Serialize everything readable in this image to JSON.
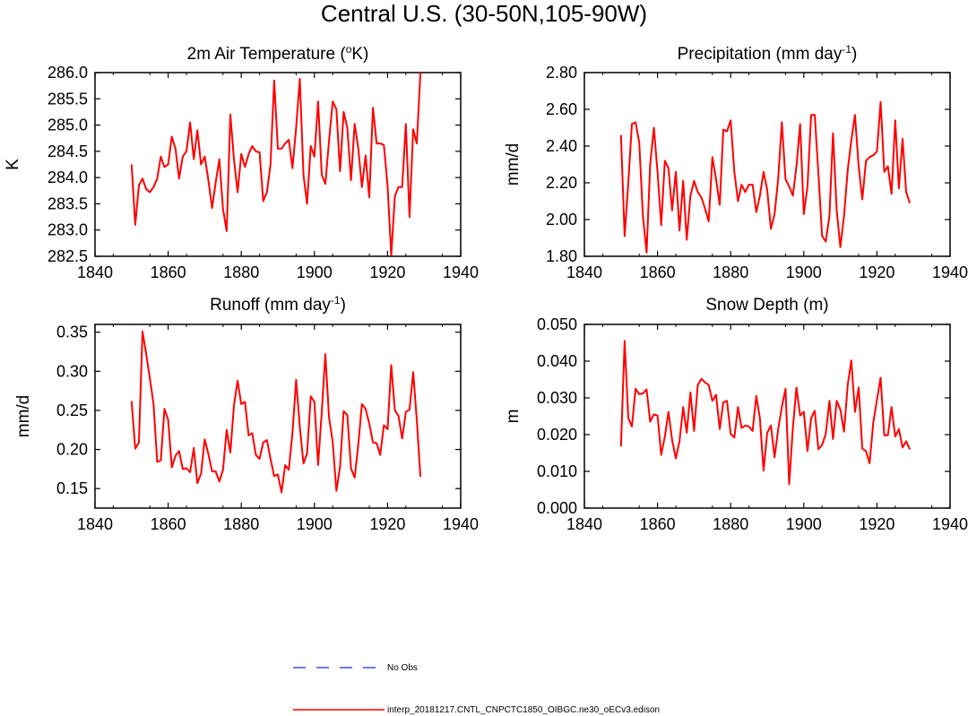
{
  "title": "Central U.S. (30-50N,105-90W)",
  "colors": {
    "model": "#ff0000",
    "obs": "#3b4fe0",
    "axis": "#000000"
  },
  "legend": {
    "obs_label": "No Obs",
    "model_label": "interp_20181217.CNTL_CNPCTC1850_OIBGC.ne30_oECv3.edison"
  },
  "chart_data": [
    {
      "type": "line",
      "title_prefix": "2m Air Temperature (",
      "title_sup": "o",
      "title_suffix": "K)",
      "ylabel": "K",
      "xlim": [
        1840,
        1940
      ],
      "ylim": [
        282.5,
        286.0
      ],
      "xticks": [
        1840,
        1860,
        1880,
        1900,
        1920,
        1940
      ],
      "xtick_labels": [
        "1840",
        "1860",
        "1880",
        "1900",
        "1920",
        "1940"
      ],
      "yticks": [
        282.5,
        283.0,
        283.5,
        284.0,
        284.5,
        285.0,
        285.5,
        286.0
      ],
      "ytick_labels": [
        "282.5",
        "283.0",
        "283.5",
        "284.0",
        "284.5",
        "285.0",
        "285.5",
        "286.0"
      ],
      "x_start": 1850,
      "values": [
        284.25,
        283.1,
        283.85,
        283.98,
        283.78,
        283.72,
        283.82,
        283.98,
        284.4,
        284.2,
        284.25,
        284.78,
        284.55,
        283.98,
        284.4,
        284.5,
        285.05,
        284.35,
        284.9,
        284.25,
        284.4,
        283.95,
        283.42,
        283.9,
        284.35,
        283.4,
        282.98,
        285.2,
        284.35,
        283.72,
        284.45,
        284.2,
        284.45,
        284.6,
        284.5,
        284.48,
        283.55,
        283.72,
        284.25,
        285.85,
        284.55,
        284.55,
        284.65,
        284.72,
        284.18,
        284.95,
        285.88,
        284.05,
        283.5,
        284.6,
        284.4,
        285.45,
        284.05,
        283.88,
        284.7,
        285.45,
        285.3,
        284.12,
        285.25,
        284.95,
        283.95,
        285.02,
        284.55,
        283.82,
        284.42,
        283.62,
        285.33,
        284.65,
        284.65,
        284.62,
        283.85,
        282.52,
        283.65,
        283.82,
        283.82,
        285.02,
        283.25,
        284.92,
        284.65,
        286.0
      ]
    },
    {
      "type": "line",
      "title_prefix": "Precipitation (mm day",
      "title_sup": "-1",
      "title_suffix": ")",
      "ylabel": "mm/d",
      "xlim": [
        1840,
        1940
      ],
      "ylim": [
        1.8,
        2.8
      ],
      "xticks": [
        1840,
        1860,
        1880,
        1900,
        1920,
        1940
      ],
      "xtick_labels": [
        "1840",
        "1860",
        "1880",
        "1900",
        "1920",
        "1940"
      ],
      "yticks": [
        1.8,
        2.0,
        2.2,
        2.4,
        2.6,
        2.8
      ],
      "ytick_labels": [
        "1.80",
        "2.00",
        "2.20",
        "2.40",
        "2.60",
        "2.80"
      ],
      "x_start": 1850,
      "values": [
        2.46,
        1.91,
        2.2,
        2.52,
        2.53,
        2.42,
        2.02,
        1.82,
        2.3,
        2.5,
        2.26,
        1.97,
        2.32,
        2.28,
        2.05,
        2.26,
        1.94,
        2.21,
        1.89,
        2.13,
        2.21,
        2.15,
        2.12,
        2.06,
        1.99,
        2.34,
        2.22,
        2.08,
        2.49,
        2.48,
        2.54,
        2.26,
        2.1,
        2.19,
        2.15,
        2.19,
        2.19,
        2.04,
        2.13,
        2.26,
        2.16,
        1.95,
        2.03,
        2.22,
        2.53,
        2.22,
        2.18,
        2.13,
        2.29,
        2.52,
        2.03,
        2.18,
        2.57,
        2.57,
        2.25,
        1.91,
        1.88,
        2.02,
        2.47,
        2.05,
        1.85,
        2.02,
        2.27,
        2.43,
        2.57,
        2.29,
        2.11,
        2.32,
        2.34,
        2.35,
        2.37,
        2.64,
        2.26,
        2.29,
        2.14,
        2.54,
        2.17,
        2.44,
        2.15,
        2.09
      ]
    },
    {
      "type": "line",
      "title_prefix": "Runoff (mm day",
      "title_sup": "-1",
      "title_suffix": ")",
      "ylabel": "mm/d",
      "xlim": [
        1840,
        1940
      ],
      "ylim": [
        0.125,
        0.36
      ],
      "xticks": [
        1840,
        1860,
        1880,
        1900,
        1920,
        1940
      ],
      "xtick_labels": [
        "1840",
        "1860",
        "1880",
        "1900",
        "1920",
        "1940"
      ],
      "yticks": [
        0.15,
        0.2,
        0.25,
        0.3,
        0.35
      ],
      "ytick_labels": [
        "0.15",
        "0.20",
        "0.25",
        "0.30",
        "0.35"
      ],
      "x_start": 1850,
      "values": [
        0.262,
        0.201,
        0.209,
        0.351,
        0.322,
        0.291,
        0.258,
        0.184,
        0.186,
        0.252,
        0.238,
        0.177,
        0.192,
        0.198,
        0.175,
        0.176,
        0.171,
        0.202,
        0.157,
        0.169,
        0.213,
        0.194,
        0.172,
        0.172,
        0.159,
        0.174,
        0.225,
        0.196,
        0.256,
        0.288,
        0.258,
        0.261,
        0.218,
        0.221,
        0.193,
        0.188,
        0.209,
        0.212,
        0.188,
        0.166,
        0.168,
        0.145,
        0.18,
        0.174,
        0.221,
        0.289,
        0.229,
        0.182,
        0.195,
        0.268,
        0.261,
        0.18,
        0.248,
        0.322,
        0.241,
        0.21,
        0.147,
        0.178,
        0.249,
        0.244,
        0.176,
        0.164,
        0.207,
        0.258,
        0.252,
        0.233,
        0.209,
        0.208,
        0.193,
        0.231,
        0.226,
        0.308,
        0.25,
        0.243,
        0.214,
        0.248,
        0.251,
        0.299,
        0.238,
        0.165
      ]
    },
    {
      "type": "line",
      "title_prefix": "Snow Depth (m)",
      "title_sup": "",
      "title_suffix": "",
      "ylabel": "m",
      "xlim": [
        1840,
        1940
      ],
      "ylim": [
        0.0,
        0.05
      ],
      "xticks": [
        1840,
        1860,
        1880,
        1900,
        1920,
        1940
      ],
      "xtick_labels": [
        "1840",
        "1860",
        "1880",
        "1900",
        "1920",
        "1940"
      ],
      "yticks": [
        0.0,
        0.01,
        0.02,
        0.03,
        0.04,
        0.05
      ],
      "ytick_labels": [
        "0.000",
        "0.010",
        "0.020",
        "0.030",
        "0.040",
        "0.050"
      ],
      "x_start": 1850,
      "values": [
        0.0168,
        0.0455,
        0.0245,
        0.0222,
        0.0325,
        0.031,
        0.0312,
        0.0323,
        0.0235,
        0.0255,
        0.0252,
        0.0145,
        0.0195,
        0.0262,
        0.0185,
        0.0135,
        0.0182,
        0.0275,
        0.0205,
        0.0315,
        0.021,
        0.0335,
        0.0352,
        0.0342,
        0.0335,
        0.0292,
        0.0308,
        0.0215,
        0.0288,
        0.0292,
        0.0202,
        0.0192,
        0.0275,
        0.0218,
        0.0225,
        0.0222,
        0.021,
        0.0305,
        0.0245,
        0.0102,
        0.0205,
        0.0225,
        0.0138,
        0.0215,
        0.0275,
        0.0325,
        0.0065,
        0.0218,
        0.0328,
        0.0252,
        0.0262,
        0.0155,
        0.0245,
        0.0265,
        0.016,
        0.0172,
        0.0202,
        0.0292,
        0.0188,
        0.0292,
        0.0268,
        0.0208,
        0.0335,
        0.0402,
        0.0262,
        0.0328,
        0.0162,
        0.0155,
        0.0122,
        0.0232,
        0.0295,
        0.0355,
        0.0198,
        0.0198,
        0.0275,
        0.0195,
        0.0215,
        0.0165,
        0.0182,
        0.016
      ]
    }
  ]
}
